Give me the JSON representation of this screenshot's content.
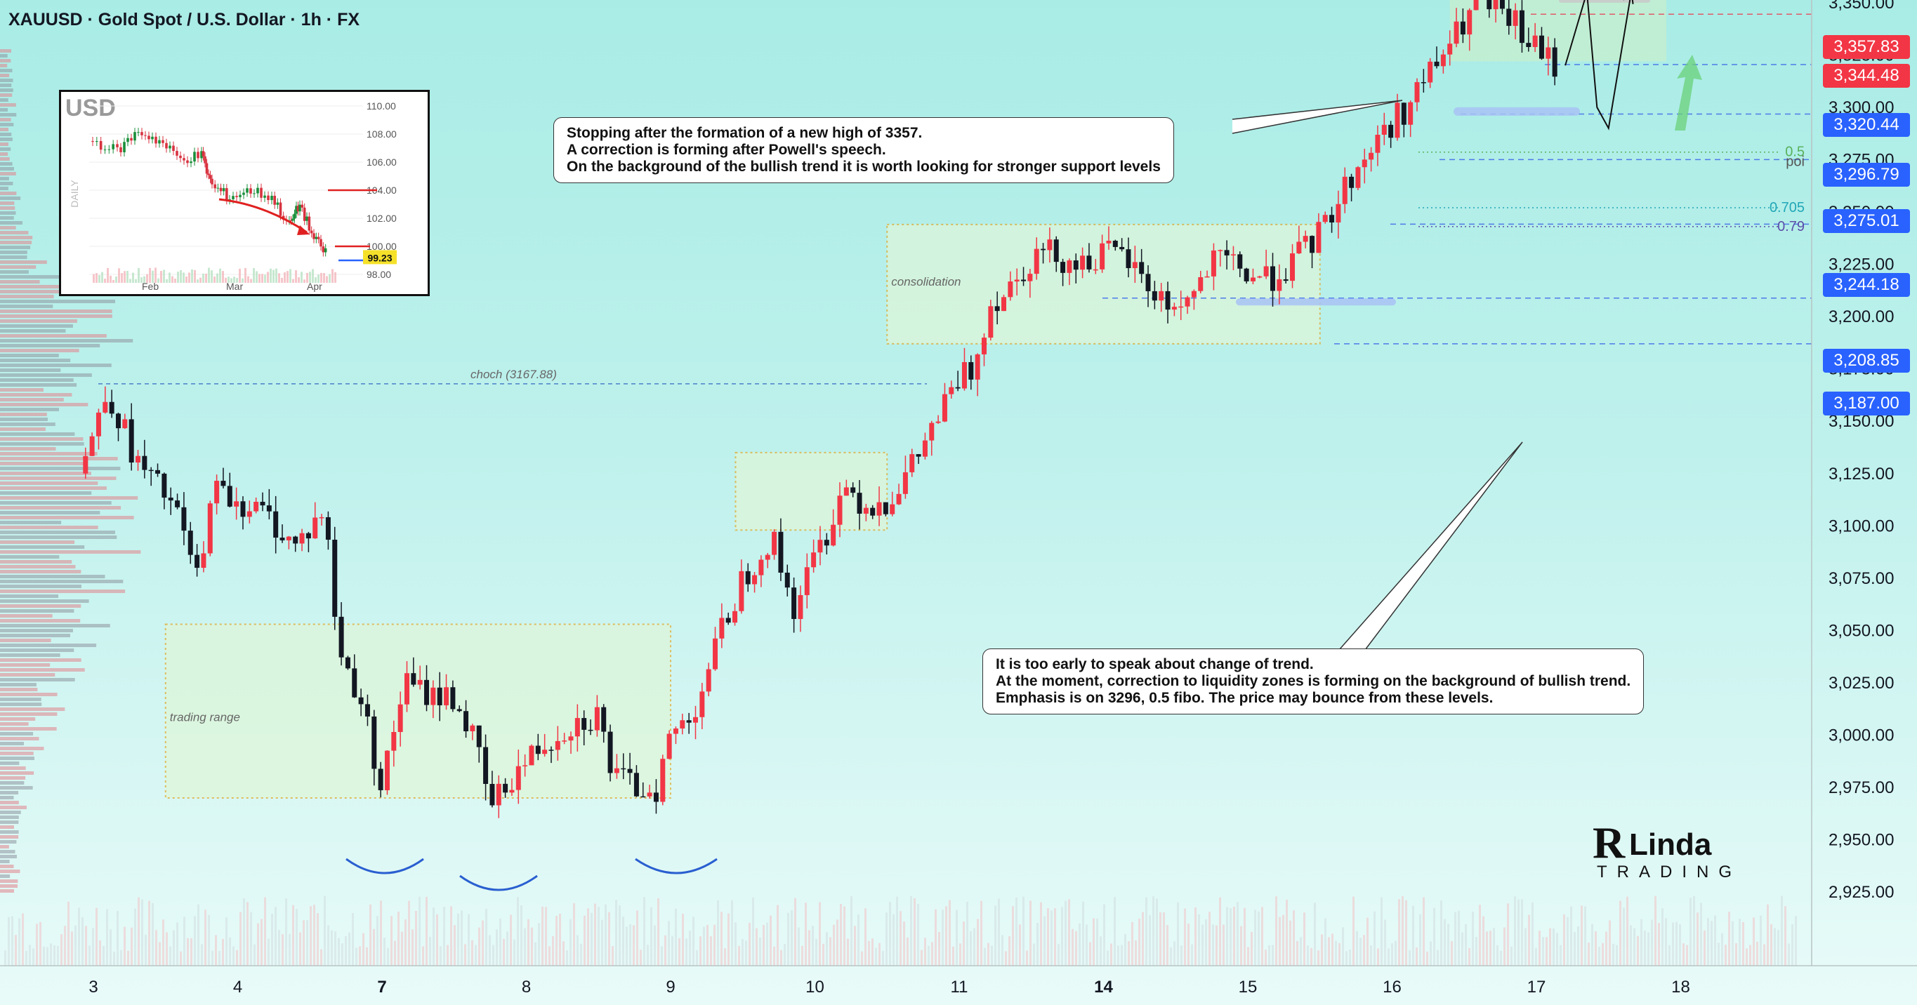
{
  "header": {
    "title": "XAUUSD · Gold Spot / U.S. Dollar · 1h · FX"
  },
  "colors": {
    "up": "#f23645",
    "down": "#131722",
    "zone_green": "#c9f0d0",
    "zone_border": "#e3a520",
    "label_red": "#f23645",
    "label_blue": "#2962ff",
    "support_blue": "#a8c2f5"
  },
  "callouts": {
    "top": [
      "Stopping after the formation of a new high of 3357.",
      "A correction is forming after Powell's speech.",
      "On the background of the bullish trend it is worth looking for stronger support levels"
    ],
    "bottom": [
      "It is too early to speak about change of trend.",
      "At the moment, correction to liquidity zones is forming on the background of bullish trend.",
      "Emphasis is on 3296, 0.5 fibo. The price may bounce from these levels."
    ]
  },
  "zone_labels": {
    "trading_range": "trading range",
    "consolidation": "consolidation",
    "choch": "choch (3167.88)"
  },
  "fibo": {
    "f05": "0.5",
    "poi": "poi",
    "f0705": "0.705",
    "f079": "0.79"
  },
  "price_labels": [
    {
      "value": "3,357.83",
      "color": "red"
    },
    {
      "value": "3,344.48",
      "color": "red"
    },
    {
      "value": "3,320.44",
      "color": "blue"
    },
    {
      "value": "3,296.79",
      "color": "blue"
    },
    {
      "value": "3,275.01",
      "color": "blue"
    },
    {
      "value": "3,244.18",
      "color": "blue"
    },
    {
      "value": "3,208.85",
      "color": "blue"
    },
    {
      "value": "3,187.00",
      "color": "blue"
    }
  ],
  "inset": {
    "title": "USD",
    "timeframe": "DAILY",
    "last_price": "99.23",
    "y_ticks": [
      "110.00",
      "108.00",
      "106.00",
      "104.00",
      "102.00",
      "100.00",
      "98.00"
    ],
    "x_ticks": [
      "Feb",
      "Mar",
      "Apr"
    ]
  },
  "logo": {
    "line1": "Linda",
    "line2": "TRADING"
  },
  "chart_data": {
    "type": "candlestick",
    "title": "XAUUSD · Gold Spot / U.S. Dollar · 1h · FX",
    "ylim": [
      2918,
      3382
    ],
    "y_ticks": [
      2925,
      2950,
      2975,
      3000,
      3025,
      3050,
      3075,
      3100,
      3125,
      3150,
      3175,
      3200,
      3225,
      3250,
      3275,
      3300,
      3325,
      3350,
      3375
    ],
    "y_tick_labels": [
      "2,925.00",
      "2,950.00",
      "2,975.00",
      "3,000.00",
      "3,025.00",
      "3,050.00",
      "3,075.00",
      "3,100.00",
      "3,125.00",
      "3,150.00",
      "3,175.00",
      "3,200.00",
      "3,225.00",
      "3,250.00",
      "3,275.00",
      "3,300.00",
      "3,325.00",
      "3,350.00",
      "3,375.00"
    ],
    "x_ticks": [
      "3",
      "4",
      "7",
      "8",
      "9",
      "10",
      "11",
      "14",
      "15",
      "16",
      "17",
      "18"
    ],
    "x_tick_bold": [
      "7",
      "14"
    ],
    "path_points": [
      [
        2.9,
        3125
      ],
      [
        3.1,
        3165
      ],
      [
        3.3,
        3130
      ],
      [
        3.55,
        3110
      ],
      [
        3.75,
        3070
      ],
      [
        3.8,
        3118
      ],
      [
        4.0,
        3112
      ],
      [
        4.2,
        3105
      ],
      [
        4.4,
        3090
      ],
      [
        4.6,
        3108
      ],
      [
        4.7,
        3040
      ],
      [
        4.85,
        3018
      ],
      [
        5.0,
        2975
      ],
      [
        5.15,
        3025
      ],
      [
        5.3,
        3020
      ],
      [
        5.5,
        3018
      ],
      [
        5.65,
        2995
      ],
      [
        5.75,
        2965
      ],
      [
        5.9,
        2980
      ],
      [
        6.1,
        2995
      ],
      [
        6.3,
        3005
      ],
      [
        6.5,
        3010
      ],
      [
        6.6,
        2980
      ],
      [
        6.75,
        2975
      ],
      [
        6.9,
        2975
      ],
      [
        7.0,
        3000
      ],
      [
        7.15,
        3010
      ],
      [
        7.3,
        3040
      ],
      [
        7.5,
        3075
      ],
      [
        7.7,
        3095
      ],
      [
        7.85,
        3060
      ],
      [
        8.0,
        3085
      ],
      [
        8.1,
        3100
      ],
      [
        8.2,
        3120
      ],
      [
        8.35,
        3110
      ],
      [
        8.5,
        3112
      ],
      [
        8.65,
        3125
      ],
      [
        8.8,
        3145
      ],
      [
        9.0,
        3170
      ],
      [
        9.1,
        3175
      ],
      [
        9.2,
        3205
      ],
      [
        9.35,
        3215
      ],
      [
        9.5,
        3228
      ],
      [
        9.6,
        3232
      ],
      [
        9.8,
        3225
      ],
      [
        10.0,
        3230
      ],
      [
        10.15,
        3228
      ],
      [
        10.3,
        3215
      ],
      [
        10.45,
        3205
      ],
      [
        10.6,
        3208
      ],
      [
        10.75,
        3225
      ],
      [
        10.9,
        3225
      ],
      [
        11.0,
        3220
      ],
      [
        11.15,
        3218
      ],
      [
        11.3,
        3225
      ],
      [
        11.5,
        3240
      ],
      [
        11.7,
        3265
      ],
      [
        11.9,
        3285
      ],
      [
        12.1,
        3300
      ],
      [
        12.3,
        3320
      ],
      [
        12.5,
        3340
      ],
      [
        12.6,
        3352
      ],
      [
        12.7,
        3345
      ],
      [
        12.85,
        3340
      ],
      [
        12.95,
        3330
      ],
      [
        13.05,
        3325
      ],
      [
        13.15,
        3318
      ]
    ],
    "projection_points": [
      [
        13.2,
        3320
      ],
      [
        13.35,
        3355
      ],
      [
        13.42,
        3300
      ],
      [
        13.5,
        3290
      ],
      [
        13.65,
        3352
      ]
    ],
    "levels": [
      3357.83,
      3344.48,
      3320.44,
      3296.79,
      3275.01,
      3244.18,
      3208.85,
      3187.0,
      3167.88
    ],
    "zones": [
      {
        "name": "trading range",
        "x": [
          3.5,
          7.0
        ],
        "y": [
          2970,
          3053
        ]
      },
      {
        "name": "demand",
        "x": [
          7.45,
          8.5
        ],
        "y": [
          3098,
          3135
        ]
      },
      {
        "name": "consolidation",
        "x": [
          8.5,
          11.5
        ],
        "y": [
          3187,
          3244
        ]
      },
      {
        "name": "top range",
        "x": [
          12.4,
          13.9
        ],
        "y": [
          3322,
          3358
        ]
      }
    ]
  }
}
